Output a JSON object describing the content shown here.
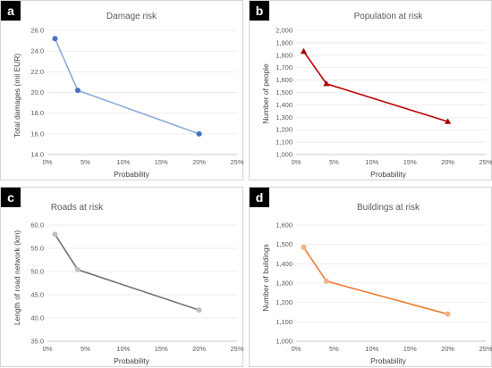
{
  "chart_data": [
    {
      "type": "line",
      "panel_label": "a",
      "title": "Damage risk",
      "xlabel": "Probability",
      "ylabel": "Total damages (mil EUR)",
      "xlim": [
        0,
        25
      ],
      "ylim": [
        14,
        26
      ],
      "xticks": [
        0,
        5,
        10,
        15,
        20,
        25
      ],
      "xtick_labels": [
        "0%",
        "5%",
        "10%",
        "15%",
        "20%",
        "25%"
      ],
      "yticks": [
        14,
        16,
        18,
        20,
        22,
        24,
        26
      ],
      "ytick_labels": [
        "14.0",
        "16.0",
        "18.0",
        "20.0",
        "22.0",
        "24.0",
        "26.0"
      ],
      "x": [
        1,
        4,
        20
      ],
      "y": [
        25.2,
        20.2,
        16.0
      ],
      "line_color": "#8eaadb",
      "marker_color": "#4472c4",
      "marker": "circle"
    },
    {
      "type": "line",
      "panel_label": "b",
      "title": "Population at risk",
      "xlabel": "Probability",
      "ylabel": "Number of people",
      "xlim": [
        0,
        25
      ],
      "ylim": [
        1000,
        2000
      ],
      "xticks": [
        0,
        5,
        10,
        15,
        20,
        25
      ],
      "xtick_labels": [
        "0%",
        "5%",
        "10%",
        "15%",
        "20%",
        "25%"
      ],
      "yticks": [
        1000,
        1100,
        1200,
        1300,
        1400,
        1500,
        1600,
        1700,
        1800,
        1900,
        2000
      ],
      "ytick_labels": [
        "1,000",
        "1,100",
        "1,200",
        "1,300",
        "1,400",
        "1,500",
        "1,600",
        "1,700",
        "1,800",
        "1,900",
        "2,000"
      ],
      "x": [
        1,
        4,
        20
      ],
      "y": [
        1830,
        1570,
        1265
      ],
      "line_color": "#c00000",
      "marker_color": "#a50000",
      "marker": "triangle"
    },
    {
      "type": "line",
      "panel_label": "c",
      "title": "Roads at risk",
      "xlabel": "Probability",
      "ylabel": "Length of road network (km)",
      "xlim": [
        0,
        25
      ],
      "ylim": [
        35,
        60
      ],
      "xticks": [
        0,
        5,
        10,
        15,
        20,
        25
      ],
      "xtick_labels": [
        "0%",
        "5%",
        "10%",
        "15%",
        "20%",
        "25%"
      ],
      "yticks": [
        35,
        40,
        45,
        50,
        55,
        60
      ],
      "ytick_labels": [
        "35.0",
        "40.0",
        "45.0",
        "50.0",
        "55.0",
        "60.0"
      ],
      "x": [
        1,
        4,
        20
      ],
      "y": [
        58.0,
        50.4,
        41.7
      ],
      "line_color": "#767171",
      "marker_color": "#bfbfbf",
      "marker": "circle"
    },
    {
      "type": "line",
      "panel_label": "d",
      "title": "Buildings at risk",
      "xlabel": "Probability",
      "ylabel": "Number of buildings",
      "xlim": [
        0,
        25
      ],
      "ylim": [
        1000,
        1600
      ],
      "xticks": [
        0,
        5,
        10,
        15,
        20,
        25
      ],
      "xtick_labels": [
        "0%",
        "5%",
        "10%",
        "15%",
        "20%",
        "25%"
      ],
      "yticks": [
        1000,
        1100,
        1200,
        1300,
        1400,
        1500,
        1600
      ],
      "ytick_labels": [
        "1,000",
        "1,100",
        "1,200",
        "1,300",
        "1,400",
        "1,500",
        "1,600"
      ],
      "x": [
        1,
        4,
        20
      ],
      "y": [
        1485,
        1310,
        1140
      ],
      "line_color": "#ed7d31",
      "marker_color": "#f4b183",
      "marker": "circle"
    }
  ]
}
